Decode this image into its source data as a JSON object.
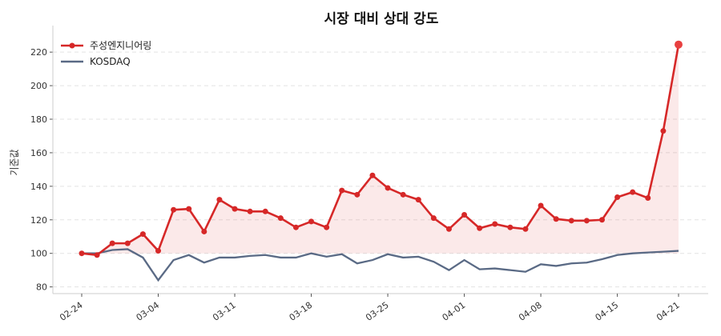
{
  "chart_data": {
    "type": "line",
    "title": "시장 대비 상대 강도",
    "xlabel": "",
    "ylabel": "기준값",
    "ylim": [
      76,
      232
    ],
    "yticks": [
      80,
      100,
      120,
      140,
      160,
      180,
      200,
      220
    ],
    "grid": "horizontal dashed",
    "legend": "top-left",
    "baseline": 100,
    "x": [
      "02-24",
      "02-25",
      "02-26",
      "02-27",
      "02-28",
      "03-04",
      "03-05",
      "03-06",
      "03-07",
      "03-10",
      "03-11",
      "03-12",
      "03-13",
      "03-14",
      "03-17",
      "03-18",
      "03-19",
      "03-20",
      "03-21",
      "03-24",
      "03-25",
      "03-26",
      "03-27",
      "03-28",
      "03-31",
      "04-01",
      "04-02",
      "04-03",
      "04-04",
      "04-07",
      "04-08",
      "04-09",
      "04-10",
      "04-11",
      "04-14",
      "04-15",
      "04-16",
      "04-17",
      "04-18",
      "04-21"
    ],
    "xticks": [
      "02-24",
      "03-04",
      "03-11",
      "03-18",
      "03-25",
      "04-01",
      "04-08",
      "04-15",
      "04-21"
    ],
    "series": [
      {
        "name": "주성엔지니어링",
        "color": "#d62828",
        "values": [
          100,
          99,
          106,
          106,
          111.5,
          101.5,
          126,
          126.5,
          113,
          132,
          126.5,
          125,
          125,
          121,
          115.5,
          119,
          115.5,
          137.5,
          135,
          146.5,
          139,
          135,
          132,
          121,
          114.5,
          123,
          115,
          117.5,
          115.5,
          114.5,
          128.5,
          120.5,
          119.5,
          119.5,
          120,
          133.5,
          136.5,
          133,
          173,
          224.5
        ]
      },
      {
        "name": "KOSDAQ",
        "color": "#5a6a85",
        "values": [
          100,
          100,
          102,
          102.5,
          97.5,
          84,
          96,
          99,
          94.5,
          97.5,
          97.5,
          98.5,
          99,
          97.5,
          97.5,
          100,
          98,
          99.5,
          94,
          96,
          99.5,
          97.5,
          98,
          95,
          90,
          96,
          90.5,
          91,
          90,
          89,
          93.5,
          92.5,
          94,
          94.5,
          96.5,
          99,
          100,
          100.5,
          101,
          101.5
        ]
      }
    ]
  }
}
